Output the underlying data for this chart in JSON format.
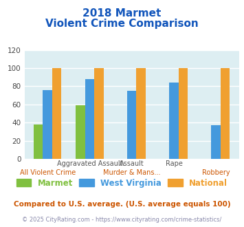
{
  "title_line1": "2018 Marmet",
  "title_line2": "Violent Crime Comparison",
  "series": {
    "Marmet": [
      38,
      59,
      0,
      0,
      0
    ],
    "West Virginia": [
      76,
      88,
      75,
      84,
      37
    ],
    "National": [
      100,
      100,
      100,
      100,
      100
    ]
  },
  "colors": {
    "Marmet": "#80c040",
    "West Virginia": "#4499dd",
    "National": "#f0a030"
  },
  "top_labels": [
    "",
    "Aggravated Assault",
    "Assault",
    "Rape",
    ""
  ],
  "bot_labels": [
    "All Violent Crime",
    "",
    "Murder & Mans...",
    "",
    "Robbery"
  ],
  "ylim": [
    0,
    120
  ],
  "yticks": [
    0,
    20,
    40,
    60,
    80,
    100,
    120
  ],
  "title_color": "#1155bb",
  "bg_color": "#ddeef2",
  "grid_color": "#ffffff",
  "footnote1": "Compared to U.S. average. (U.S. average equals 100)",
  "footnote2": "© 2025 CityRating.com - https://www.cityrating.com/crime-statistics/",
  "footnote1_color": "#cc5500",
  "footnote2_color": "#8888aa",
  "legend_labels": [
    "Marmet",
    "West Virginia",
    "National"
  ]
}
